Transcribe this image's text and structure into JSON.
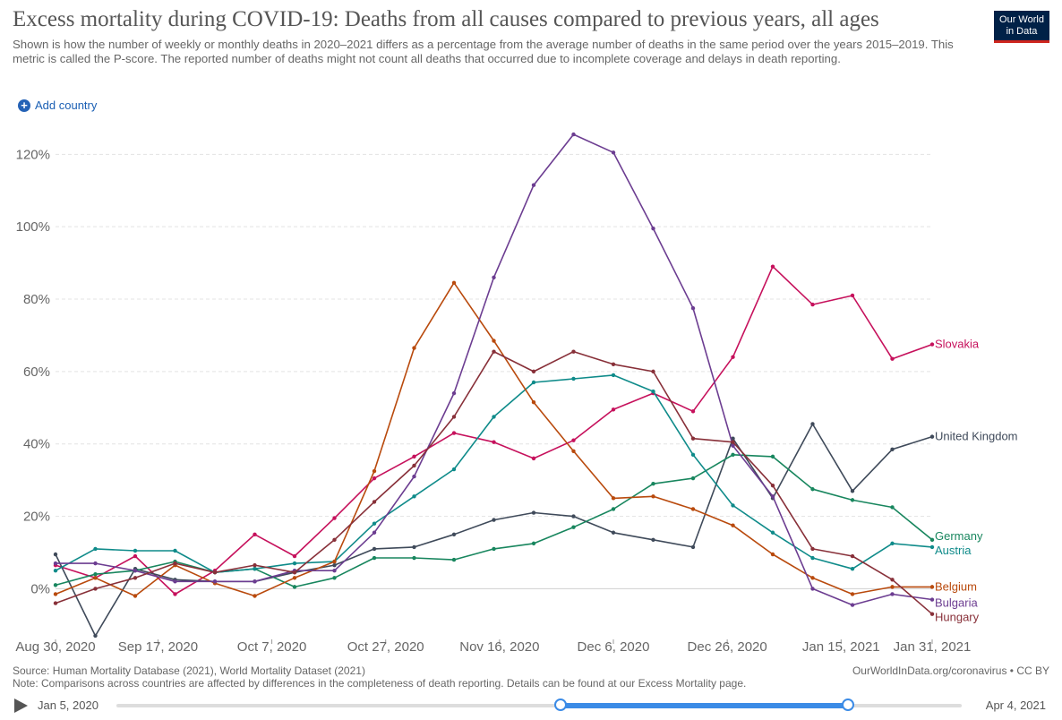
{
  "header": {
    "title": "Excess mortality during COVID-19: Deaths from all causes compared to previous years, all ages",
    "subtitle": "Shown is how the number of weekly or monthly deaths in 2020–2021 differs as a percentage from the average number of deaths in the same period over the years 2015–2019. This metric is called the P-score. The reported number of deaths might not count all deaths that occurred due to incomplete coverage and delays in death reporting.",
    "logo_line1": "Our World",
    "logo_line2": "in Data",
    "add_country": "Add country"
  },
  "footer": {
    "source": "Source: Human Mortality Database (2021), World Mortality Dataset (2021)",
    "note": "Note: Comparisons across countries are affected by differences in the completeness of death reporting. Details can be found at our Excess Mortality page.",
    "credit": "OurWorldInData.org/coronavirus • CC BY"
  },
  "timeline": {
    "start": "Jan 5, 2020",
    "end": "Apr 4, 2021"
  },
  "chart_data": {
    "type": "line",
    "ylim": [
      -14,
      128
    ],
    "yticks": [
      0,
      20,
      40,
      60,
      80,
      100,
      120
    ],
    "ytick_labels": [
      "0%",
      "20%",
      "40%",
      "60%",
      "80%",
      "100%",
      "120%"
    ],
    "xticks": [
      "2020-08-30",
      "2020-09-17",
      "2020-10-07",
      "2020-10-27",
      "2020-11-16",
      "2020-12-06",
      "2020-12-26",
      "2021-01-15",
      "2021-01-31"
    ],
    "xtick_labels": [
      "Aug 30, 2020",
      "Sep 17, 2020",
      "Oct 7, 2020",
      "Oct 27, 2020",
      "Nov 16, 2020",
      "Dec 6, 2020",
      "Dec 26, 2020",
      "Jan 15, 2021",
      "Jan 31, 2021"
    ],
    "x": [
      "2020-08-30",
      "2020-09-06",
      "2020-09-13",
      "2020-09-20",
      "2020-09-27",
      "2020-10-04",
      "2020-10-11",
      "2020-10-18",
      "2020-10-25",
      "2020-11-01",
      "2020-11-08",
      "2020-11-15",
      "2020-11-22",
      "2020-11-29",
      "2020-12-06",
      "2020-12-13",
      "2020-12-20",
      "2020-12-27",
      "2021-01-03",
      "2021-01-10",
      "2021-01-17",
      "2021-01-24",
      "2021-01-31"
    ],
    "series": [
      {
        "name": "Slovakia",
        "color": "#c6115c",
        "values": [
          6.5,
          3,
          9,
          -1.5,
          5,
          15,
          9,
          19.5,
          30.5,
          36.5,
          43,
          40.5,
          36,
          41,
          49.5,
          54,
          49,
          64,
          89,
          78.5,
          81,
          63.5,
          67.5
        ]
      },
      {
        "name": "United Kingdom",
        "color": "#3f4a5a",
        "values": [
          9.5,
          -13,
          5.5,
          2.5,
          2,
          2,
          4.5,
          6.5,
          11,
          11.5,
          15,
          19,
          21,
          20,
          15.5,
          13.5,
          11.5,
          41.5,
          25,
          45.5,
          27,
          38.5,
          42
        ]
      },
      {
        "name": "Germany",
        "color": "#18865e",
        "values": [
          1,
          4,
          5,
          7.5,
          4.5,
          5.5,
          0.5,
          3,
          8.5,
          8.5,
          8,
          11,
          12.5,
          17,
          22,
          29,
          30.5,
          37,
          36.5,
          27.5,
          24.5,
          22.5,
          13.5
        ]
      },
      {
        "name": "Austria",
        "color": "#0f8b8a",
        "values": [
          5,
          11,
          10.5,
          10.5,
          4.5,
          5.5,
          7,
          7.5,
          18,
          25.5,
          33,
          47.5,
          57,
          58,
          59,
          54.5,
          37,
          23,
          15.5,
          8.5,
          5.5,
          12.5,
          11.5
        ]
      },
      {
        "name": "Belgium",
        "color": "#b94a0d",
        "values": [
          -1.5,
          3,
          -2,
          6.5,
          1.5,
          -2,
          3,
          7.5,
          32.5,
          66.5,
          84.5,
          68.5,
          51.5,
          38,
          25,
          25.5,
          22,
          17.5,
          9.5,
          3,
          -1.5,
          0.5,
          0.5
        ]
      },
      {
        "name": "Bulgaria",
        "color": "#6c3d91",
        "values": [
          7,
          7,
          5,
          2,
          2,
          2,
          5,
          5,
          15.5,
          31,
          54,
          86,
          111.5,
          125.5,
          120.5,
          99.5,
          77.5,
          39.5,
          25.5,
          0,
          -4.5,
          -1.5,
          -3
        ]
      },
      {
        "name": "Hungary",
        "color": "#883039",
        "values": [
          -4,
          0,
          3,
          7,
          4.5,
          6.5,
          4.5,
          13.5,
          24,
          34,
          47.5,
          65.5,
          60,
          65.5,
          62,
          60,
          41.5,
          40.5,
          28.5,
          11,
          9,
          2.5,
          -7
        ]
      }
    ]
  }
}
